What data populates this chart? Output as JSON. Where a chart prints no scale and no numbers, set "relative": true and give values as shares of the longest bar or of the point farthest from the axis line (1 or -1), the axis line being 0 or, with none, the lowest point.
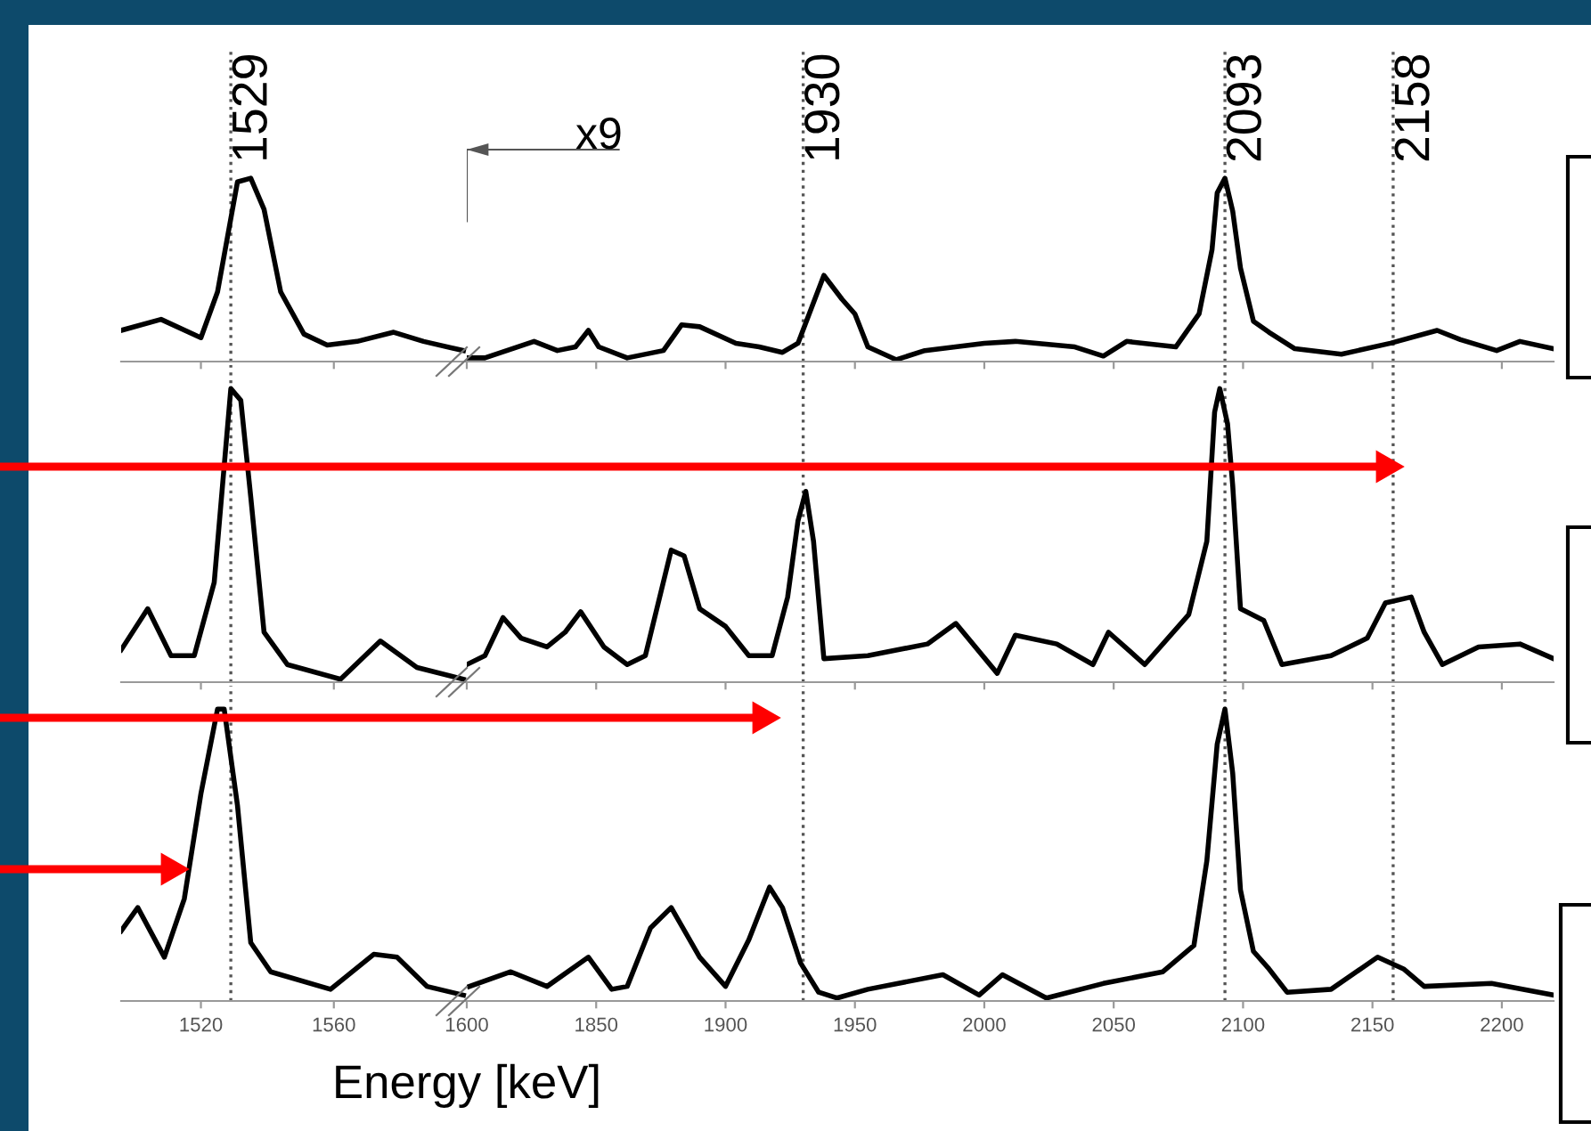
{
  "chart_data": [
    {
      "type": "line",
      "relative": true,
      "tick_labels": false,
      "xlim": [
        1496,
        1600
      ],
      "xticks": [
        1520,
        1560,
        1600
      ],
      "grid": false,
      "ref_lines": [
        {
          "axis": "x",
          "value": 1529,
          "label": "1529",
          "color": "#555555",
          "line_style": "dotted"
        }
      ],
      "series": [
        {
          "color": "#000000",
          "x": [
            1496,
            1508,
            1520,
            1525,
            1531,
            1535,
            1539,
            1544,
            1551,
            1558,
            1567,
            1578,
            1587,
            1599
          ],
          "values": [
            0.17,
            0.23,
            0.13,
            0.38,
            0.98,
            1.0,
            0.83,
            0.38,
            0.15,
            0.09,
            0.11,
            0.16,
            0.11,
            0.06
          ]
        }
      ]
    },
    {
      "type": "line",
      "relative": true,
      "tick_labels": false,
      "xlim": [
        1800,
        2220
      ],
      "xticks": [
        1850,
        1900,
        1950,
        2000,
        2050,
        2100,
        2150,
        2200
      ],
      "grid": false,
      "annotations": [
        "x9"
      ],
      "ref_lines": [
        {
          "axis": "x",
          "value": 1930,
          "label": "1930",
          "color": "#555555",
          "line_style": "dotted"
        },
        {
          "axis": "x",
          "value": 2093,
          "label": "2093",
          "color": "#555555",
          "line_style": "dotted"
        },
        {
          "axis": "x",
          "value": 2158,
          "label": "2158",
          "color": "#555555",
          "line_style": "dotted"
        }
      ],
      "series": [
        {
          "color": "#000000",
          "x": [
            1800,
            1807,
            1826,
            1835,
            1842,
            1847,
            1851,
            1862,
            1876,
            1883,
            1890,
            1904,
            1913,
            1922,
            1928,
            1938,
            1945,
            1950,
            1955,
            1966,
            1977,
            2000,
            2012,
            2035,
            2046,
            2055,
            2074,
            2083,
            2088,
            2090,
            2093,
            2096,
            2099,
            2104,
            2110,
            2120,
            2138,
            2157,
            2175,
            2184,
            2198,
            2207,
            2220
          ],
          "values": [
            0.02,
            0.02,
            0.11,
            0.06,
            0.08,
            0.17,
            0.08,
            0.02,
            0.06,
            0.2,
            0.19,
            0.1,
            0.08,
            0.05,
            0.1,
            0.47,
            0.34,
            0.26,
            0.08,
            0.01,
            0.06,
            0.1,
            0.11,
            0.08,
            0.03,
            0.11,
            0.08,
            0.26,
            0.61,
            0.92,
            1.0,
            0.82,
            0.51,
            0.22,
            0.16,
            0.07,
            0.04,
            0.1,
            0.17,
            0.12,
            0.06,
            0.11,
            0.07
          ]
        }
      ]
    },
    {
      "type": "line",
      "relative": true,
      "tick_labels": false,
      "xlim": [
        1496,
        1600
      ],
      "xticks": [
        1520,
        1560,
        1600
      ],
      "grid": false,
      "ref_lines": [
        {
          "axis": "x",
          "value": 1529,
          "color": "#555555",
          "line_style": "dotted"
        }
      ],
      "series": [
        {
          "color": "#000000",
          "x": [
            1496,
            1504,
            1511,
            1518,
            1524,
            1529,
            1532,
            1535,
            1539,
            1546,
            1562,
            1574,
            1585,
            1599
          ],
          "values": [
            0.11,
            0.25,
            0.09,
            0.09,
            0.34,
            1.0,
            0.96,
            0.63,
            0.17,
            0.06,
            0.01,
            0.14,
            0.05,
            0.01
          ]
        }
      ]
    },
    {
      "type": "line",
      "relative": true,
      "tick_labels": false,
      "xlim": [
        1800,
        2220
      ],
      "xticks": [
        1850,
        1900,
        1950,
        2000,
        2050,
        2100,
        2150,
        2200
      ],
      "grid": false,
      "ref_lines": [
        {
          "axis": "x",
          "value": 1930,
          "color": "#555555",
          "line_style": "dotted"
        },
        {
          "axis": "x",
          "value": 2093,
          "color": "#555555",
          "line_style": "dotted"
        },
        {
          "axis": "x",
          "value": 2158,
          "color": "#555555",
          "line_style": "dotted"
        }
      ],
      "series": [
        {
          "color": "#000000",
          "x": [
            1800,
            1807,
            1814,
            1821,
            1831,
            1838,
            1844,
            1853,
            1862,
            1869,
            1879,
            1884,
            1890,
            1900,
            1909,
            1918,
            1924,
            1928,
            1931,
            1934,
            1938,
            1955,
            1978,
            1989,
            2005,
            2012,
            2028,
            2042,
            2048,
            2062,
            2079,
            2086,
            2089,
            2091,
            2094,
            2096,
            2099,
            2108,
            2115,
            2134,
            2148,
            2155,
            2165,
            2170,
            2177,
            2191,
            2207,
            2220
          ],
          "values": [
            0.06,
            0.09,
            0.22,
            0.15,
            0.12,
            0.17,
            0.24,
            0.12,
            0.06,
            0.09,
            0.45,
            0.43,
            0.25,
            0.19,
            0.09,
            0.09,
            0.29,
            0.55,
            0.65,
            0.48,
            0.08,
            0.09,
            0.13,
            0.2,
            0.03,
            0.16,
            0.13,
            0.06,
            0.17,
            0.06,
            0.23,
            0.48,
            0.92,
            1.0,
            0.88,
            0.67,
            0.25,
            0.21,
            0.06,
            0.09,
            0.15,
            0.27,
            0.29,
            0.17,
            0.06,
            0.12,
            0.13,
            0.08
          ]
        }
      ]
    },
    {
      "type": "line",
      "relative": true,
      "xlim": [
        1496,
        1600
      ],
      "xticks": [
        1520,
        1560,
        1600
      ],
      "grid": false,
      "xlabel": "Energy [keV]",
      "ref_lines": [
        {
          "axis": "x",
          "value": 1529,
          "color": "#555555",
          "line_style": "dotted"
        }
      ],
      "series": [
        {
          "color": "#000000",
          "x": [
            1496,
            1501,
            1509,
            1515,
            1520,
            1525,
            1527,
            1531,
            1535,
            1541,
            1559,
            1572,
            1579,
            1588,
            1599
          ],
          "values": [
            0.24,
            0.32,
            0.15,
            0.35,
            0.71,
            1.0,
            1.0,
            0.67,
            0.2,
            0.1,
            0.04,
            0.16,
            0.15,
            0.05,
            0.02
          ]
        }
      ]
    },
    {
      "type": "line",
      "relative": true,
      "xlim": [
        1800,
        2220
      ],
      "xticks": [
        1850,
        1900,
        1950,
        2000,
        2050,
        2100,
        2150,
        2200
      ],
      "grid": false,
      "ref_lines": [
        {
          "axis": "x",
          "value": 1930,
          "color": "#555555",
          "line_style": "dotted"
        },
        {
          "axis": "x",
          "value": 2093,
          "color": "#555555",
          "line_style": "dotted"
        },
        {
          "axis": "x",
          "value": 2158,
          "color": "#555555",
          "line_style": "dotted"
        }
      ],
      "series": [
        {
          "color": "#000000",
          "x": [
            1801,
            1817,
            1831,
            1847,
            1856,
            1862,
            1871,
            1879,
            1890,
            1900,
            1909,
            1917,
            1922,
            1929,
            1936,
            1943,
            1955,
            1984,
            1998,
            2007,
            2024,
            2046,
            2069,
            2081,
            2086,
            2090,
            2093,
            2096,
            2099,
            2104,
            2110,
            2117,
            2134,
            2152,
            2162,
            2170,
            2196,
            2220
          ],
          "values": [
            0.05,
            0.1,
            0.05,
            0.15,
            0.04,
            0.05,
            0.25,
            0.32,
            0.15,
            0.05,
            0.21,
            0.39,
            0.32,
            0.13,
            0.03,
            0.01,
            0.04,
            0.09,
            0.02,
            0.09,
            0.01,
            0.06,
            0.1,
            0.19,
            0.48,
            0.88,
            1.0,
            0.78,
            0.38,
            0.17,
            0.11,
            0.03,
            0.04,
            0.15,
            0.11,
            0.05,
            0.06,
            0.02
          ]
        }
      ]
    }
  ]
}
